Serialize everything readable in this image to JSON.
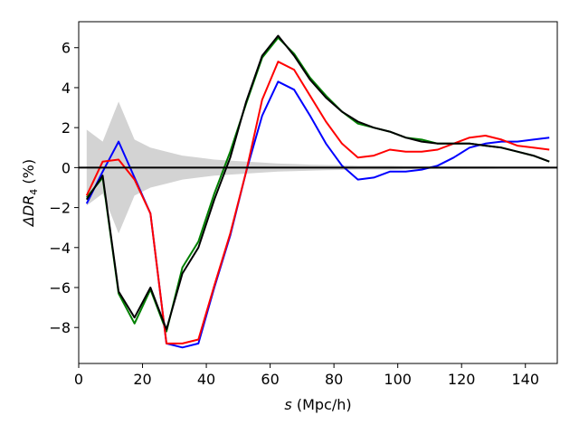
{
  "chart_data": {
    "type": "line",
    "xlabel_var": "s",
    "xlabel_unit": " (Mpc/h)",
    "ylabel_main": "ΔDR",
    "ylabel_sub": "4",
    "ylabel_unit": " (%)",
    "xlim": [
      0,
      150
    ],
    "ylim": [
      -9.8,
      7.3
    ],
    "xticks": [
      0,
      20,
      40,
      60,
      80,
      100,
      120,
      140
    ],
    "yticks": [
      -8,
      -6,
      -4,
      -2,
      0,
      2,
      4,
      6
    ],
    "grid": false,
    "zero_line": true,
    "x": [
      2.5,
      7.5,
      12.5,
      17.5,
      22.5,
      27.5,
      32.5,
      37.5,
      42.5,
      47.5,
      52.5,
      57.5,
      62.5,
      67.5,
      72.5,
      77.5,
      82.5,
      87.5,
      92.5,
      97.5,
      102.5,
      107.5,
      112.5,
      117.5,
      122.5,
      127.5,
      132.5,
      137.5,
      142.5,
      147.5
    ],
    "band": {
      "color": "#d3d3d3",
      "upper": [
        1.9,
        1.3,
        3.3,
        1.4,
        1.0,
        0.8,
        0.6,
        0.5,
        0.4,
        0.35,
        0.3,
        0.25,
        0.2,
        0.18,
        0.15,
        0.13,
        0.12,
        0.1,
        0.1,
        0.1,
        0.08,
        0.08,
        0.07,
        0.07,
        0.06,
        0.06,
        0.05,
        0.05,
        0.05,
        0.05
      ],
      "lower": [
        -1.9,
        -1.3,
        -3.3,
        -1.4,
        -1.0,
        -0.8,
        -0.6,
        -0.5,
        -0.4,
        -0.35,
        -0.3,
        -0.25,
        -0.2,
        -0.18,
        -0.15,
        -0.13,
        -0.12,
        -0.1,
        -0.1,
        -0.1,
        -0.08,
        -0.08,
        -0.07,
        -0.07,
        -0.06,
        -0.06,
        -0.05,
        -0.05,
        -0.05,
        -0.05
      ]
    },
    "series": [
      {
        "color": "#008000",
        "values": [
          -1.5,
          -0.5,
          -6.3,
          -7.8,
          -6.1,
          -8.2,
          -5.0,
          -3.7,
          -1.3,
          0.8,
          3.2,
          5.5,
          6.5,
          5.7,
          4.5,
          3.6,
          2.8,
          2.2,
          2.0,
          1.8,
          1.5,
          1.4,
          1.2,
          1.2,
          1.2,
          1.1,
          1.0,
          0.8,
          0.6,
          0.3
        ]
      },
      {
        "color": "#0000ff",
        "values": [
          -1.8,
          -0.2,
          1.3,
          -0.5,
          -2.3,
          -8.8,
          -9.0,
          -8.8,
          -6.0,
          -3.4,
          -0.2,
          2.6,
          4.3,
          3.9,
          2.6,
          1.2,
          0.1,
          -0.6,
          -0.5,
          -0.2,
          -0.2,
          -0.1,
          0.1,
          0.5,
          1.0,
          1.2,
          1.3,
          1.3,
          1.4,
          1.5
        ]
      },
      {
        "color": "#ff0000",
        "values": [
          -1.4,
          0.3,
          0.4,
          -0.6,
          -2.3,
          -8.8,
          -8.8,
          -8.6,
          -5.9,
          -3.3,
          -0.2,
          3.4,
          5.3,
          4.9,
          3.6,
          2.3,
          1.2,
          0.5,
          0.6,
          0.9,
          0.8,
          0.8,
          0.9,
          1.2,
          1.5,
          1.6,
          1.4,
          1.1,
          1.0,
          0.9
        ]
      },
      {
        "color": "#000000",
        "values": [
          -1.6,
          -0.4,
          -6.2,
          -7.5,
          -6.0,
          -8.1,
          -5.3,
          -4.0,
          -1.6,
          0.5,
          3.3,
          5.6,
          6.6,
          5.6,
          4.4,
          3.5,
          2.8,
          2.3,
          2.0,
          1.8,
          1.5,
          1.3,
          1.2,
          1.2,
          1.2,
          1.1,
          1.0,
          0.8,
          0.6,
          0.3
        ]
      }
    ]
  }
}
